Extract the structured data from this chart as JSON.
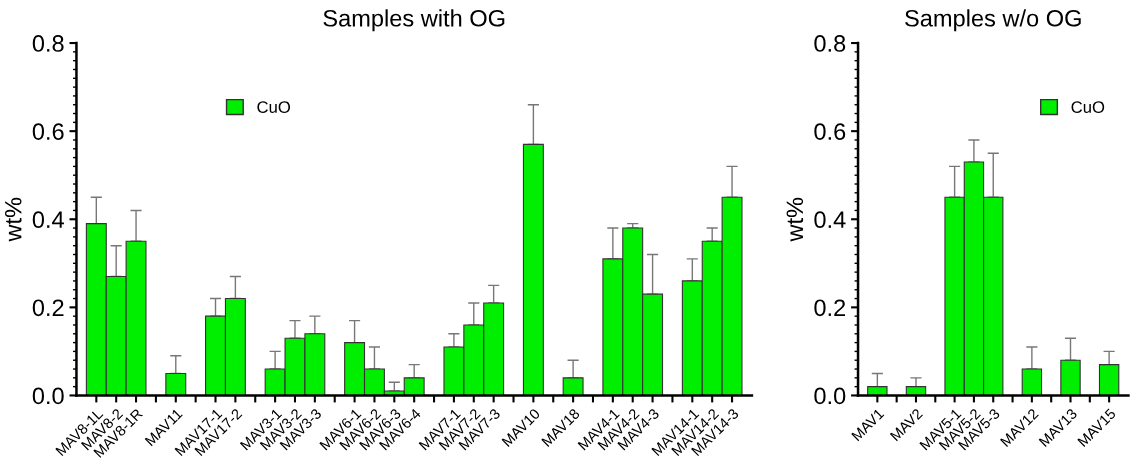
{
  "chart_data": [
    {
      "type": "bar",
      "title": "Samples with OG",
      "ylabel": "wt%",
      "categories": [
        "MAV8-1L",
        "MAV8-2",
        "MAV8-1R",
        null,
        "MAV11",
        null,
        "MAV17-1",
        "MAV17-2",
        null,
        "MAV3-1",
        "MAV3-2",
        "MAV3-3",
        null,
        "MAV6-1",
        "MAV6-2",
        "MAV6-3",
        "MAV6-4",
        null,
        "MAV7-1",
        "MAV7-2",
        "MAV7-3",
        null,
        "MAV10",
        null,
        "MAV18",
        null,
        "MAV4-1",
        "MAV4-2",
        "MAV4-3",
        null,
        "MAV14-1",
        "MAV14-2",
        "MAV14-3"
      ],
      "series": [
        {
          "name": "CuO",
          "color": "#00ee00",
          "values": [
            0.39,
            0.27,
            0.35,
            null,
            0.05,
            null,
            0.18,
            0.22,
            null,
            0.06,
            0.13,
            0.14,
            null,
            0.12,
            0.06,
            0.01,
            0.04,
            null,
            0.11,
            0.16,
            0.21,
            null,
            0.57,
            null,
            0.04,
            null,
            0.31,
            0.38,
            0.23,
            null,
            0.26,
            0.35,
            0.45
          ],
          "errors": [
            [
              0.39,
              0.45
            ],
            [
              0.27,
              0.34
            ],
            [
              0.35,
              0.42
            ],
            null,
            [
              0.05,
              0.09
            ],
            null,
            [
              0.18,
              0.22
            ],
            [
              0.22,
              0.27
            ],
            null,
            [
              0.06,
              0.1
            ],
            [
              0.13,
              0.17
            ],
            [
              0.14,
              0.18
            ],
            null,
            [
              0.12,
              0.17
            ],
            [
              0.06,
              0.11
            ],
            [
              0.01,
              0.03
            ],
            [
              0.04,
              0.07
            ],
            null,
            [
              0.11,
              0.14
            ],
            [
              0.16,
              0.21
            ],
            [
              0.21,
              0.25
            ],
            null,
            [
              0.57,
              0.66
            ],
            null,
            [
              0.04,
              0.08
            ],
            null,
            [
              0.31,
              0.38
            ],
            [
              0.38,
              0.39
            ],
            [
              0.23,
              0.32
            ],
            null,
            [
              0.26,
              0.31
            ],
            [
              0.35,
              0.38
            ],
            [
              0.45,
              0.52
            ]
          ]
        }
      ],
      "ylim": [
        0,
        0.8
      ],
      "yticks": [
        {
          "value": 0,
          "label": "0.0"
        },
        0.2,
        0.4,
        0.6,
        0.8
      ],
      "legend": "top left",
      "grid": false
    },
    {
      "type": "bar",
      "title": "Samples w/o OG",
      "ylabel": "wt%",
      "categories": [
        "MAV1",
        null,
        "MAV2",
        null,
        "MAV5-1",
        "MAV5-2",
        "MAV5-3",
        null,
        "MAV12",
        null,
        "MAV13",
        null,
        "MAV15"
      ],
      "series": [
        {
          "name": "CuO",
          "color": "#00ee00",
          "values": [
            0.02,
            null,
            0.02,
            null,
            0.45,
            0.53,
            0.45,
            null,
            0.06,
            null,
            0.08,
            null,
            0.07
          ],
          "errors": [
            [
              0.02,
              0.05
            ],
            null,
            [
              0.02,
              0.04
            ],
            null,
            [
              0.45,
              0.52
            ],
            [
              0.53,
              0.58
            ],
            [
              0.45,
              0.55
            ],
            null,
            [
              0.06,
              0.11
            ],
            null,
            [
              0.08,
              0.13
            ],
            null,
            [
              0.07,
              0.1
            ]
          ]
        }
      ],
      "ylim": [
        0,
        0.8
      ],
      "yticks": [
        {
          "value": 0,
          "label": "0.0"
        },
        0.2,
        0.4,
        0.6,
        0.8
      ],
      "legend": "top right",
      "grid": false
    }
  ]
}
